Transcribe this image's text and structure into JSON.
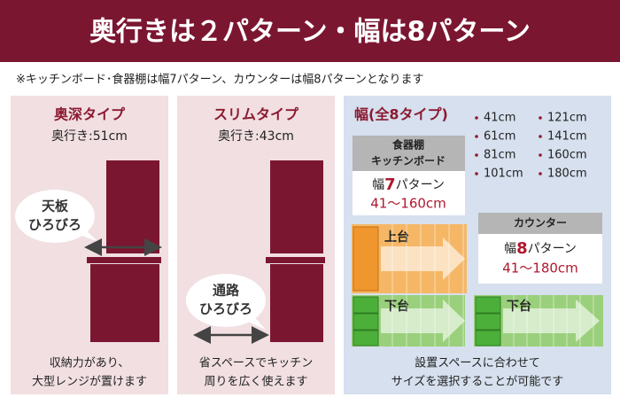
{
  "header": {
    "title": "奥行きは２パターン・幅は8パターン"
  },
  "note": "※キッチンボード･食器棚は幅7パターン、カウンターは幅8パターンとなります",
  "panels": [
    {
      "title": "奥深タイプ",
      "depth": "奥行き:51cm",
      "bubble": [
        "天板",
        "ひろびろ"
      ],
      "caption": [
        "収納力があり、",
        "大型レンジが置けます"
      ]
    },
    {
      "title": "スリムタイプ",
      "depth": "奥行き:43cm",
      "bubble": [
        "通路",
        "ひろびろ"
      ],
      "caption": [
        "省スペースでキッチン",
        "周りを広く使えます"
      ]
    },
    {
      "title": "幅(全8タイプ)",
      "widths": [
        "41cm",
        "61cm",
        "81cm",
        "101cm",
        "121cm",
        "141cm",
        "160cm",
        "180cm"
      ],
      "boxes": [
        {
          "header": [
            "食器棚",
            "キッチンボード"
          ],
          "prefix": "幅",
          "number": "7",
          "suffix": "パターン",
          "range": "41～160cm"
        },
        {
          "header": [
            "カウンター"
          ],
          "prefix": "幅",
          "number": "8",
          "suffix": "パターン",
          "range": "41～180cm"
        }
      ],
      "upper_label": "上台",
      "lower_label": "下台",
      "caption": [
        "設置スペースに合わせて",
        "サイズを選択することが可能です"
      ]
    }
  ]
}
